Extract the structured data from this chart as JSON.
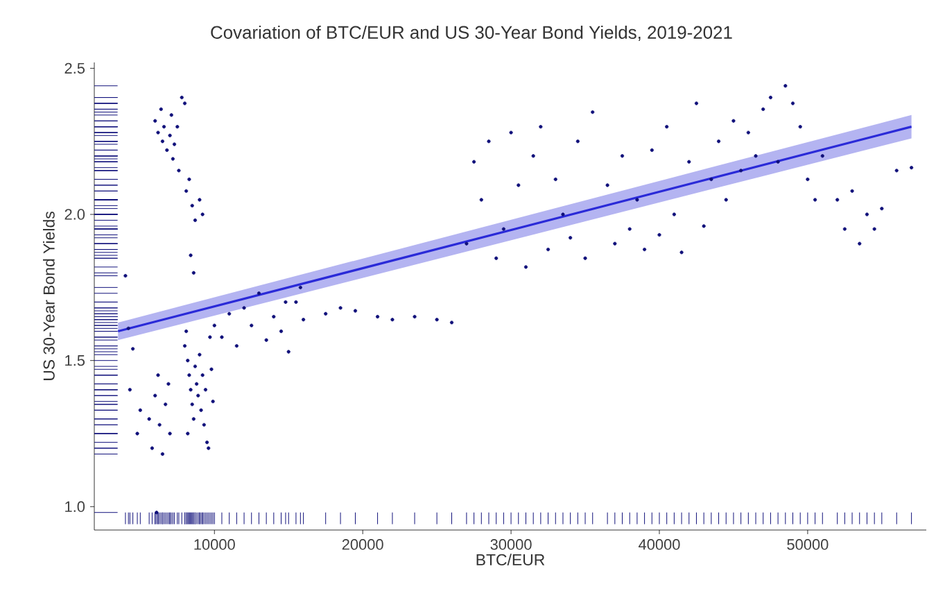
{
  "chart_data": {
    "type": "scatter",
    "title": "Covariation of BTC/EUR and US 30-Year Bond Yields, 2019-2021",
    "xlabel": "BTC/EUR",
    "ylabel": "US 30-Year Bond Yields",
    "xlim": [
      1900,
      58000
    ],
    "ylim": [
      0.92,
      2.52
    ],
    "xticks": [
      10000,
      20000,
      30000,
      40000,
      50000
    ],
    "yticks": [
      {
        "value": 1.0,
        "label": "1.0"
      },
      1.5,
      {
        "value": 2.0,
        "label": "2.0"
      },
      2.5
    ],
    "grid": false,
    "series": [
      {
        "marker": "circle",
        "color": "#10107a",
        "x": [
          4000,
          4200,
          4500,
          4300,
          4800,
          5000,
          5600,
          5800,
          6000,
          6200,
          6300,
          6500,
          6700,
          6900,
          7000,
          6100,
          6000,
          6200,
          6400,
          6500,
          6600,
          6800,
          7000,
          7100,
          7200,
          7300,
          7500,
          7600,
          7800,
          8000,
          8100,
          8300,
          8500,
          8700,
          9000,
          9200,
          8600,
          8400,
          8000,
          8200,
          8300,
          8400,
          8500,
          8600,
          8700,
          8800,
          8900,
          9000,
          9100,
          9200,
          9300,
          9400,
          9500,
          9600,
          9700,
          9800,
          9900,
          10000,
          8200,
          8100,
          10500,
          11000,
          11500,
          12000,
          12500,
          13000,
          13500,
          14000,
          14500,
          15000,
          15500,
          16000,
          15800,
          14800,
          17500,
          18500,
          19500,
          21000,
          22000,
          23500,
          25000,
          26000,
          27000,
          27500,
          28000,
          28500,
          29000,
          29500,
          30000,
          30500,
          31000,
          31500,
          32000,
          32500,
          33000,
          33500,
          34000,
          34500,
          35000,
          35500,
          36500,
          37000,
          37500,
          38000,
          38500,
          39000,
          39500,
          40000,
          40500,
          41000,
          41500,
          42000,
          42500,
          43000,
          43500,
          44000,
          44500,
          45000,
          45500,
          46000,
          46500,
          47000,
          47500,
          48000,
          48500,
          49000,
          49500,
          50000,
          50500,
          51000,
          52000,
          52500,
          53000,
          53500,
          54000,
          54500,
          55000,
          56000,
          57000
        ],
        "values": [
          1.79,
          1.61,
          1.54,
          1.4,
          1.25,
          1.33,
          1.3,
          1.2,
          1.38,
          1.45,
          1.28,
          1.18,
          1.35,
          1.42,
          1.25,
          0.98,
          2.32,
          2.28,
          2.36,
          2.25,
          2.3,
          2.22,
          2.27,
          2.34,
          2.19,
          2.24,
          2.3,
          2.15,
          2.4,
          2.38,
          2.08,
          2.12,
          2.03,
          1.98,
          2.05,
          2.0,
          1.8,
          1.86,
          1.55,
          1.5,
          1.45,
          1.4,
          1.35,
          1.3,
          1.48,
          1.42,
          1.38,
          1.52,
          1.33,
          1.45,
          1.28,
          1.4,
          1.22,
          1.2,
          1.58,
          1.47,
          1.36,
          1.62,
          1.25,
          1.6,
          1.58,
          1.66,
          1.55,
          1.68,
          1.62,
          1.73,
          1.57,
          1.65,
          1.6,
          1.53,
          1.7,
          1.64,
          1.75,
          1.7,
          1.66,
          1.68,
          1.67,
          1.65,
          1.64,
          1.65,
          1.64,
          1.63,
          1.9,
          2.18,
          2.05,
          2.25,
          1.85,
          1.95,
          2.28,
          2.1,
          1.82,
          2.2,
          2.3,
          1.88,
          2.12,
          2.0,
          1.92,
          2.25,
          1.85,
          2.35,
          2.1,
          1.9,
          2.2,
          1.95,
          2.05,
          1.88,
          2.22,
          1.93,
          2.3,
          2.0,
          1.87,
          2.18,
          2.38,
          1.96,
          2.12,
          2.25,
          2.05,
          2.32,
          2.15,
          2.28,
          2.2,
          2.36,
          2.4,
          2.18,
          2.44,
          2.38,
          2.3,
          2.12,
          2.05,
          2.2,
          2.05,
          1.95,
          2.08,
          1.9,
          2.0,
          1.95,
          2.02,
          2.15,
          2.16
        ]
      },
      {
        "type": "line",
        "marker": "none",
        "color": "#2a2ad8",
        "x": [
          3500,
          57000
        ],
        "values": [
          1.6,
          2.3
        ],
        "lower": [
          1.57,
          2.26
        ],
        "upper": [
          1.63,
          2.34
        ]
      }
    ]
  }
}
